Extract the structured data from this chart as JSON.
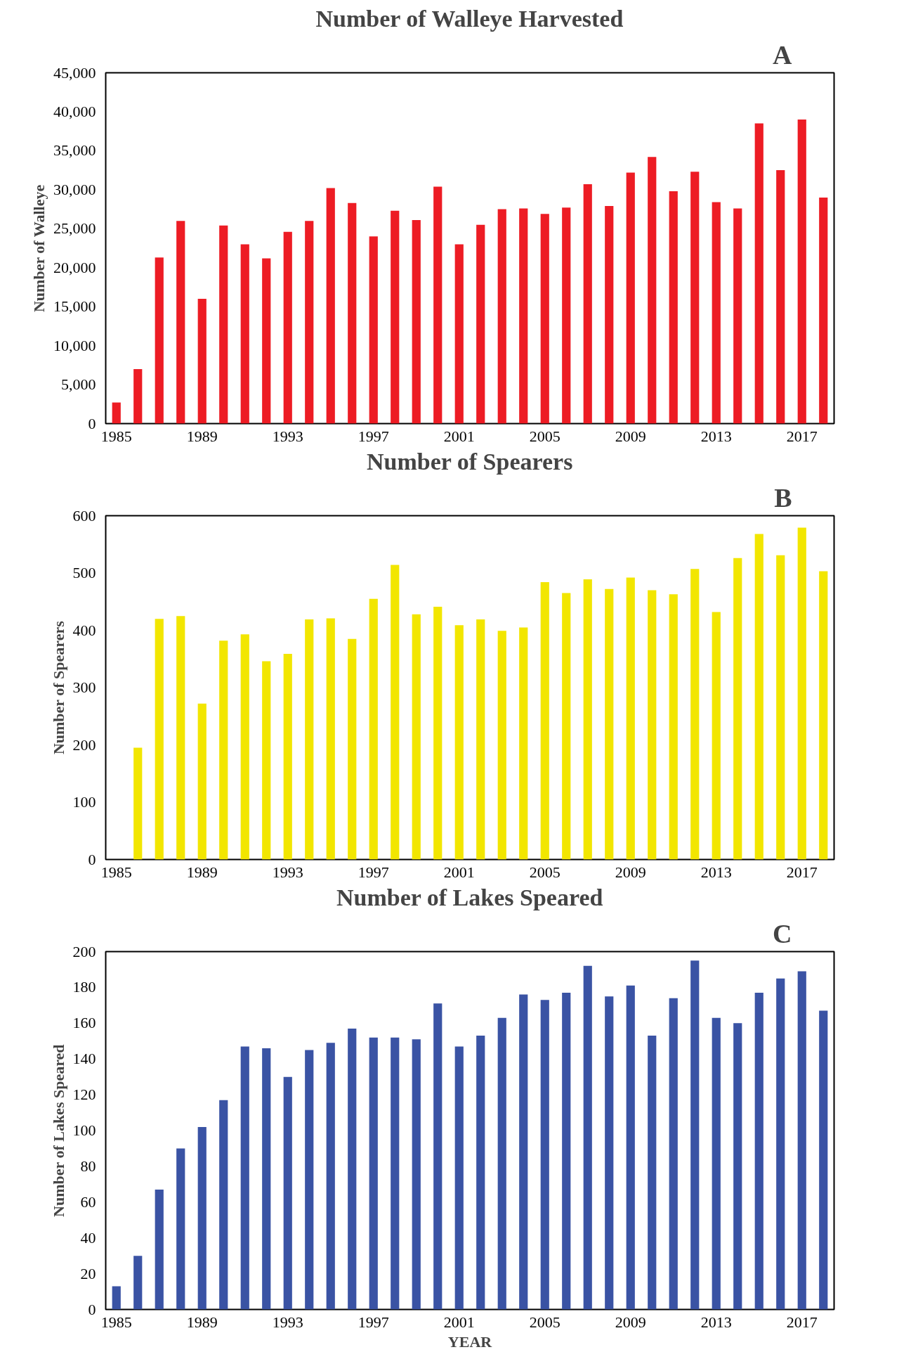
{
  "chart_data": [
    {
      "type": "bar",
      "title": "Number of Walleye Harvested",
      "ylabel": "Number of Walleye",
      "annotations": [
        "A"
      ],
      "color": "#ed1c24",
      "categories": [
        "1985",
        null,
        null,
        null,
        "1989",
        null,
        null,
        null,
        "1993",
        null,
        null,
        null,
        "1997",
        null,
        null,
        null,
        "2001",
        null,
        null,
        null,
        "2005",
        null,
        null,
        null,
        "2009",
        null,
        null,
        null,
        "2013",
        null,
        null,
        null,
        "2017",
        null
      ],
      "values": [
        2700,
        7000,
        21300,
        26000,
        16000,
        25400,
        23000,
        21200,
        24600,
        26000,
        30200,
        28300,
        24000,
        27300,
        26100,
        30400,
        23000,
        25500,
        27500,
        27600,
        26900,
        27700,
        30700,
        27900,
        32200,
        34200,
        29800,
        32300,
        28400,
        27600,
        38500,
        32500,
        39000,
        29000
      ],
      "ylim": [
        0,
        45000
      ],
      "yticks": [
        0,
        {
          "value": 5000,
          "label": "5,000"
        },
        {
          "value": 10000,
          "label": "10,000"
        },
        {
          "value": 15000,
          "label": "15,000"
        },
        {
          "value": 20000,
          "label": "20,000"
        },
        {
          "value": 25000,
          "label": "25,000"
        },
        {
          "value": 30000,
          "label": "30,000"
        },
        {
          "value": 35000,
          "label": "35,000"
        },
        {
          "value": 40000,
          "label": "40,000"
        },
        {
          "value": 45000,
          "label": "45,000"
        }
      ]
    },
    {
      "type": "bar",
      "title": "Number of Spearers",
      "ylabel": "Number of Spearers",
      "annotations": [
        "B"
      ],
      "color": "#f2e600",
      "categories": [
        "1985",
        null,
        null,
        null,
        "1989",
        null,
        null,
        null,
        "1993",
        null,
        null,
        null,
        "1997",
        null,
        null,
        null,
        "2001",
        null,
        null,
        null,
        "2005",
        null,
        null,
        null,
        "2009",
        null,
        null,
        null,
        "2013",
        null,
        null,
        null,
        "2017",
        null
      ],
      "values": [
        null,
        195,
        420,
        425,
        272,
        382,
        393,
        346,
        359,
        419,
        421,
        385,
        455,
        514,
        428,
        441,
        409,
        419,
        399,
        405,
        484,
        465,
        489,
        472,
        492,
        470,
        463,
        507,
        432,
        526,
        568,
        531,
        579,
        503
      ],
      "ylim": [
        0,
        600
      ],
      "yticks": [
        0,
        100,
        200,
        300,
        400,
        500,
        600
      ]
    },
    {
      "type": "bar",
      "title": "Number of Lakes Speared",
      "ylabel": "Number of Lakes Speared",
      "xlabel": "YEAR",
      "annotations": [
        "C"
      ],
      "color": "#3a53a4",
      "categories": [
        "1985",
        null,
        null,
        null,
        "1989",
        null,
        null,
        null,
        "1993",
        null,
        null,
        null,
        "1997",
        null,
        null,
        null,
        "2001",
        null,
        null,
        null,
        "2005",
        null,
        null,
        null,
        "2009",
        null,
        null,
        null,
        "2013",
        null,
        null,
        null,
        "2017",
        null
      ],
      "values": [
        13,
        30,
        67,
        90,
        102,
        117,
        147,
        146,
        130,
        145,
        149,
        157,
        152,
        152,
        151,
        171,
        147,
        153,
        163,
        176,
        173,
        177,
        192,
        175,
        181,
        153,
        174,
        195,
        163,
        160,
        177,
        185,
        189,
        167
      ],
      "ylim": [
        0,
        200
      ],
      "yticks": [
        0,
        20,
        40,
        60,
        80,
        100,
        120,
        140,
        160,
        180,
        200
      ]
    }
  ]
}
